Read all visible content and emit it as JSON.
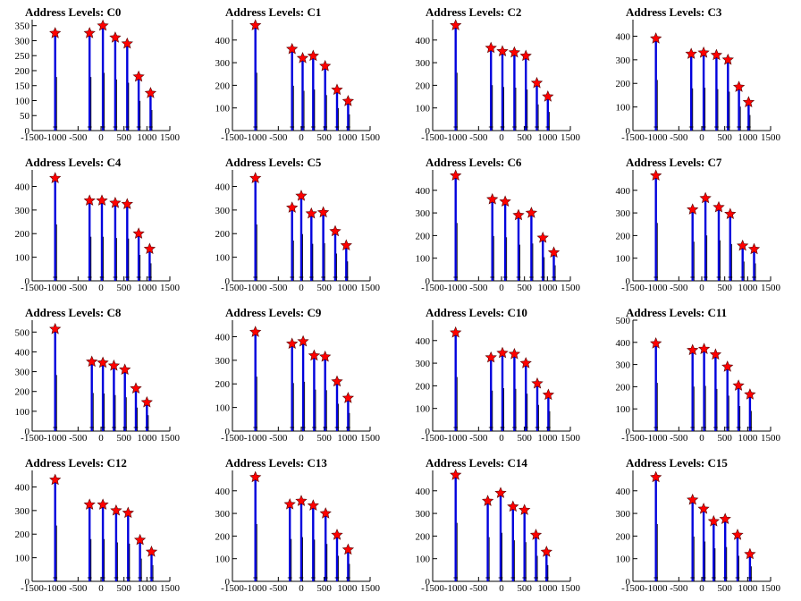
{
  "chart_data": [
    {
      "type": "histogram",
      "title": "Address Levels: C0",
      "xlim": [
        -1500,
        1500
      ],
      "ylim": [
        0,
        370
      ],
      "xticks": [
        -1500,
        -1000,
        -500,
        0,
        500,
        1000,
        1500
      ],
      "yticks": [
        0,
        50,
        100,
        150,
        200,
        250,
        300,
        350
      ],
      "peaks": [
        {
          "x": -1000,
          "y": 325
        },
        {
          "x": -250,
          "y": 325
        },
        {
          "x": 40,
          "y": 350
        },
        {
          "x": 310,
          "y": 310
        },
        {
          "x": 570,
          "y": 290
        },
        {
          "x": 820,
          "y": 180
        },
        {
          "x": 1080,
          "y": 125
        }
      ]
    },
    {
      "type": "histogram",
      "title": "Address Levels: C1",
      "xlim": [
        -1500,
        1500
      ],
      "ylim": [
        0,
        490
      ],
      "xticks": [
        -1500,
        -1000,
        -500,
        0,
        500,
        1000,
        1500
      ],
      "yticks": [
        0,
        100,
        200,
        300,
        400
      ],
      "peaks": [
        {
          "x": -1000,
          "y": 465
        },
        {
          "x": -200,
          "y": 360
        },
        {
          "x": 30,
          "y": 320
        },
        {
          "x": 260,
          "y": 330
        },
        {
          "x": 520,
          "y": 285
        },
        {
          "x": 780,
          "y": 180
        },
        {
          "x": 1020,
          "y": 130
        }
      ]
    },
    {
      "type": "histogram",
      "title": "Address Levels: C2",
      "xlim": [
        -1500,
        1500
      ],
      "ylim": [
        0,
        490
      ],
      "xticks": [
        -1500,
        -1000,
        -500,
        0,
        500,
        1000,
        1500
      ],
      "yticks": [
        0,
        100,
        200,
        300,
        400
      ],
      "peaks": [
        {
          "x": -1000,
          "y": 465
        },
        {
          "x": -230,
          "y": 365
        },
        {
          "x": 20,
          "y": 350
        },
        {
          "x": 280,
          "y": 345
        },
        {
          "x": 530,
          "y": 330
        },
        {
          "x": 770,
          "y": 210
        },
        {
          "x": 1010,
          "y": 150
        }
      ]
    },
    {
      "type": "histogram",
      "title": "Address Levels: C3",
      "xlim": [
        -1500,
        1500
      ],
      "ylim": [
        0,
        470
      ],
      "xticks": [
        -1500,
        -1000,
        -500,
        0,
        500,
        1000,
        1500
      ],
      "yticks": [
        0,
        100,
        200,
        300,
        400
      ],
      "peaks": [
        {
          "x": -1000,
          "y": 390
        },
        {
          "x": -230,
          "y": 325
        },
        {
          "x": 40,
          "y": 330
        },
        {
          "x": 320,
          "y": 320
        },
        {
          "x": 570,
          "y": 300
        },
        {
          "x": 810,
          "y": 185
        },
        {
          "x": 1020,
          "y": 120
        }
      ]
    },
    {
      "type": "histogram",
      "title": "Address Levels: C4",
      "xlim": [
        -1500,
        1500
      ],
      "ylim": [
        0,
        470
      ],
      "xticks": [
        -1500,
        -1000,
        -500,
        0,
        500,
        1000,
        1500
      ],
      "yticks": [
        0,
        100,
        200,
        300,
        400
      ],
      "peaks": [
        {
          "x": -1000,
          "y": 435
        },
        {
          "x": -250,
          "y": 340
        },
        {
          "x": 20,
          "y": 340
        },
        {
          "x": 310,
          "y": 330
        },
        {
          "x": 570,
          "y": 325
        },
        {
          "x": 820,
          "y": 200
        },
        {
          "x": 1060,
          "y": 135
        }
      ]
    },
    {
      "type": "histogram",
      "title": "Address Levels: C5",
      "xlim": [
        -1500,
        1500
      ],
      "ylim": [
        0,
        470
      ],
      "xticks": [
        -1500,
        -1000,
        -500,
        0,
        500,
        1000,
        1500
      ],
      "yticks": [
        0,
        100,
        200,
        300,
        400
      ],
      "peaks": [
        {
          "x": -1000,
          "y": 435
        },
        {
          "x": -200,
          "y": 310
        },
        {
          "x": 0,
          "y": 360
        },
        {
          "x": 220,
          "y": 285
        },
        {
          "x": 480,
          "y": 290
        },
        {
          "x": 740,
          "y": 210
        },
        {
          "x": 980,
          "y": 150
        }
      ]
    },
    {
      "type": "histogram",
      "title": "Address Levels: C6",
      "xlim": [
        -1500,
        1500
      ],
      "ylim": [
        0,
        490
      ],
      "xticks": [
        -1500,
        -1000,
        -500,
        0,
        500,
        1000,
        1500
      ],
      "yticks": [
        0,
        100,
        200,
        300,
        400
      ],
      "peaks": [
        {
          "x": -1000,
          "y": 465
        },
        {
          "x": -200,
          "y": 360
        },
        {
          "x": 80,
          "y": 350
        },
        {
          "x": 370,
          "y": 290
        },
        {
          "x": 650,
          "y": 300
        },
        {
          "x": 900,
          "y": 190
        },
        {
          "x": 1140,
          "y": 125
        }
      ]
    },
    {
      "type": "histogram",
      "title": "Address Levels: C7",
      "xlim": [
        -1500,
        1500
      ],
      "ylim": [
        0,
        490
      ],
      "xticks": [
        -1500,
        -1000,
        -500,
        0,
        500,
        1000,
        1500
      ],
      "yticks": [
        0,
        100,
        200,
        300,
        400
      ],
      "peaks": [
        {
          "x": -1000,
          "y": 465
        },
        {
          "x": -200,
          "y": 315
        },
        {
          "x": 80,
          "y": 365
        },
        {
          "x": 370,
          "y": 325
        },
        {
          "x": 620,
          "y": 295
        },
        {
          "x": 890,
          "y": 155
        },
        {
          "x": 1140,
          "y": 140
        }
      ]
    },
    {
      "type": "histogram",
      "title": "Address Levels: C8",
      "xlim": [
        -1500,
        1500
      ],
      "ylim": [
        0,
        560
      ],
      "xticks": [
        -1500,
        -1000,
        -500,
        0,
        500,
        1000,
        1500
      ],
      "yticks": [
        0,
        100,
        200,
        300,
        400,
        500
      ],
      "peaks": [
        {
          "x": -1000,
          "y": 515
        },
        {
          "x": -200,
          "y": 350
        },
        {
          "x": 40,
          "y": 345
        },
        {
          "x": 280,
          "y": 330
        },
        {
          "x": 520,
          "y": 310
        },
        {
          "x": 760,
          "y": 215
        },
        {
          "x": 1000,
          "y": 145
        }
      ]
    },
    {
      "type": "histogram",
      "title": "Address Levels: C9",
      "xlim": [
        -1500,
        1500
      ],
      "ylim": [
        0,
        470
      ],
      "xticks": [
        -1500,
        -1000,
        -500,
        0,
        500,
        1000,
        1500
      ],
      "yticks": [
        0,
        100,
        200,
        300,
        400
      ],
      "peaks": [
        {
          "x": -1000,
          "y": 420
        },
        {
          "x": -200,
          "y": 370
        },
        {
          "x": 40,
          "y": 380
        },
        {
          "x": 280,
          "y": 320
        },
        {
          "x": 520,
          "y": 315
        },
        {
          "x": 780,
          "y": 210
        },
        {
          "x": 1020,
          "y": 140
        }
      ]
    },
    {
      "type": "histogram",
      "title": "Address Levels: C10",
      "xlim": [
        -1500,
        1500
      ],
      "ylim": [
        0,
        490
      ],
      "xticks": [
        -1500,
        -1000,
        -500,
        0,
        500,
        1000,
        1500
      ],
      "yticks": [
        0,
        100,
        200,
        300,
        400
      ],
      "peaks": [
        {
          "x": -1000,
          "y": 435
        },
        {
          "x": -230,
          "y": 325
        },
        {
          "x": 20,
          "y": 345
        },
        {
          "x": 280,
          "y": 340
        },
        {
          "x": 530,
          "y": 300
        },
        {
          "x": 780,
          "y": 210
        },
        {
          "x": 1020,
          "y": 160
        }
      ]
    },
    {
      "type": "histogram",
      "title": "Address Levels: C11",
      "xlim": [
        -1500,
        1500
      ],
      "ylim": [
        0,
        500
      ],
      "xticks": [
        -1500,
        -1000,
        -500,
        0,
        500,
        1000,
        1500
      ],
      "yticks": [
        0,
        100,
        200,
        300,
        400,
        500
      ],
      "peaks": [
        {
          "x": -1000,
          "y": 395
        },
        {
          "x": -200,
          "y": 365
        },
        {
          "x": 50,
          "y": 370
        },
        {
          "x": 300,
          "y": 345
        },
        {
          "x": 560,
          "y": 290
        },
        {
          "x": 800,
          "y": 205
        },
        {
          "x": 1050,
          "y": 165
        }
      ]
    },
    {
      "type": "histogram",
      "title": "Address Levels: C12",
      "xlim": [
        -1500,
        1500
      ],
      "ylim": [
        0,
        470
      ],
      "xticks": [
        -1500,
        -1000,
        -500,
        0,
        500,
        1000,
        1500
      ],
      "yticks": [
        0,
        100,
        200,
        300,
        400
      ],
      "peaks": [
        {
          "x": -1000,
          "y": 430
        },
        {
          "x": -250,
          "y": 325
        },
        {
          "x": 40,
          "y": 325
        },
        {
          "x": 330,
          "y": 300
        },
        {
          "x": 590,
          "y": 290
        },
        {
          "x": 850,
          "y": 175
        },
        {
          "x": 1100,
          "y": 125
        }
      ]
    },
    {
      "type": "histogram",
      "title": "Address Levels: C13",
      "xlim": [
        -1500,
        1500
      ],
      "ylim": [
        0,
        490
      ],
      "xticks": [
        -1500,
        -1000,
        -500,
        0,
        500,
        1000,
        1500
      ],
      "yticks": [
        0,
        100,
        200,
        300,
        400
      ],
      "peaks": [
        {
          "x": -1000,
          "y": 460
        },
        {
          "x": -250,
          "y": 340
        },
        {
          "x": 0,
          "y": 355
        },
        {
          "x": 260,
          "y": 335
        },
        {
          "x": 530,
          "y": 300
        },
        {
          "x": 780,
          "y": 205
        },
        {
          "x": 1020,
          "y": 140
        }
      ]
    },
    {
      "type": "histogram",
      "title": "Address Levels: C14",
      "xlim": [
        -1500,
        1500
      ],
      "ylim": [
        0,
        490
      ],
      "xticks": [
        -1500,
        -1000,
        -500,
        0,
        500,
        1000,
        1500
      ],
      "yticks": [
        0,
        100,
        200,
        300,
        400
      ],
      "peaks": [
        {
          "x": -1000,
          "y": 470
        },
        {
          "x": -300,
          "y": 355
        },
        {
          "x": -20,
          "y": 390
        },
        {
          "x": 250,
          "y": 330
        },
        {
          "x": 500,
          "y": 315
        },
        {
          "x": 750,
          "y": 205
        },
        {
          "x": 980,
          "y": 130
        }
      ]
    },
    {
      "type": "histogram",
      "title": "Address Levels: C15",
      "xlim": [
        -1500,
        1500
      ],
      "ylim": [
        0,
        490
      ],
      "xticks": [
        -1500,
        -1000,
        -500,
        0,
        500,
        1000,
        1500
      ],
      "yticks": [
        0,
        100,
        200,
        300,
        400
      ],
      "peaks": [
        {
          "x": -1000,
          "y": 460
        },
        {
          "x": -200,
          "y": 360
        },
        {
          "x": 40,
          "y": 320
        },
        {
          "x": 260,
          "y": 265
        },
        {
          "x": 510,
          "y": 275
        },
        {
          "x": 780,
          "y": 205
        },
        {
          "x": 1050,
          "y": 120
        }
      ]
    }
  ]
}
